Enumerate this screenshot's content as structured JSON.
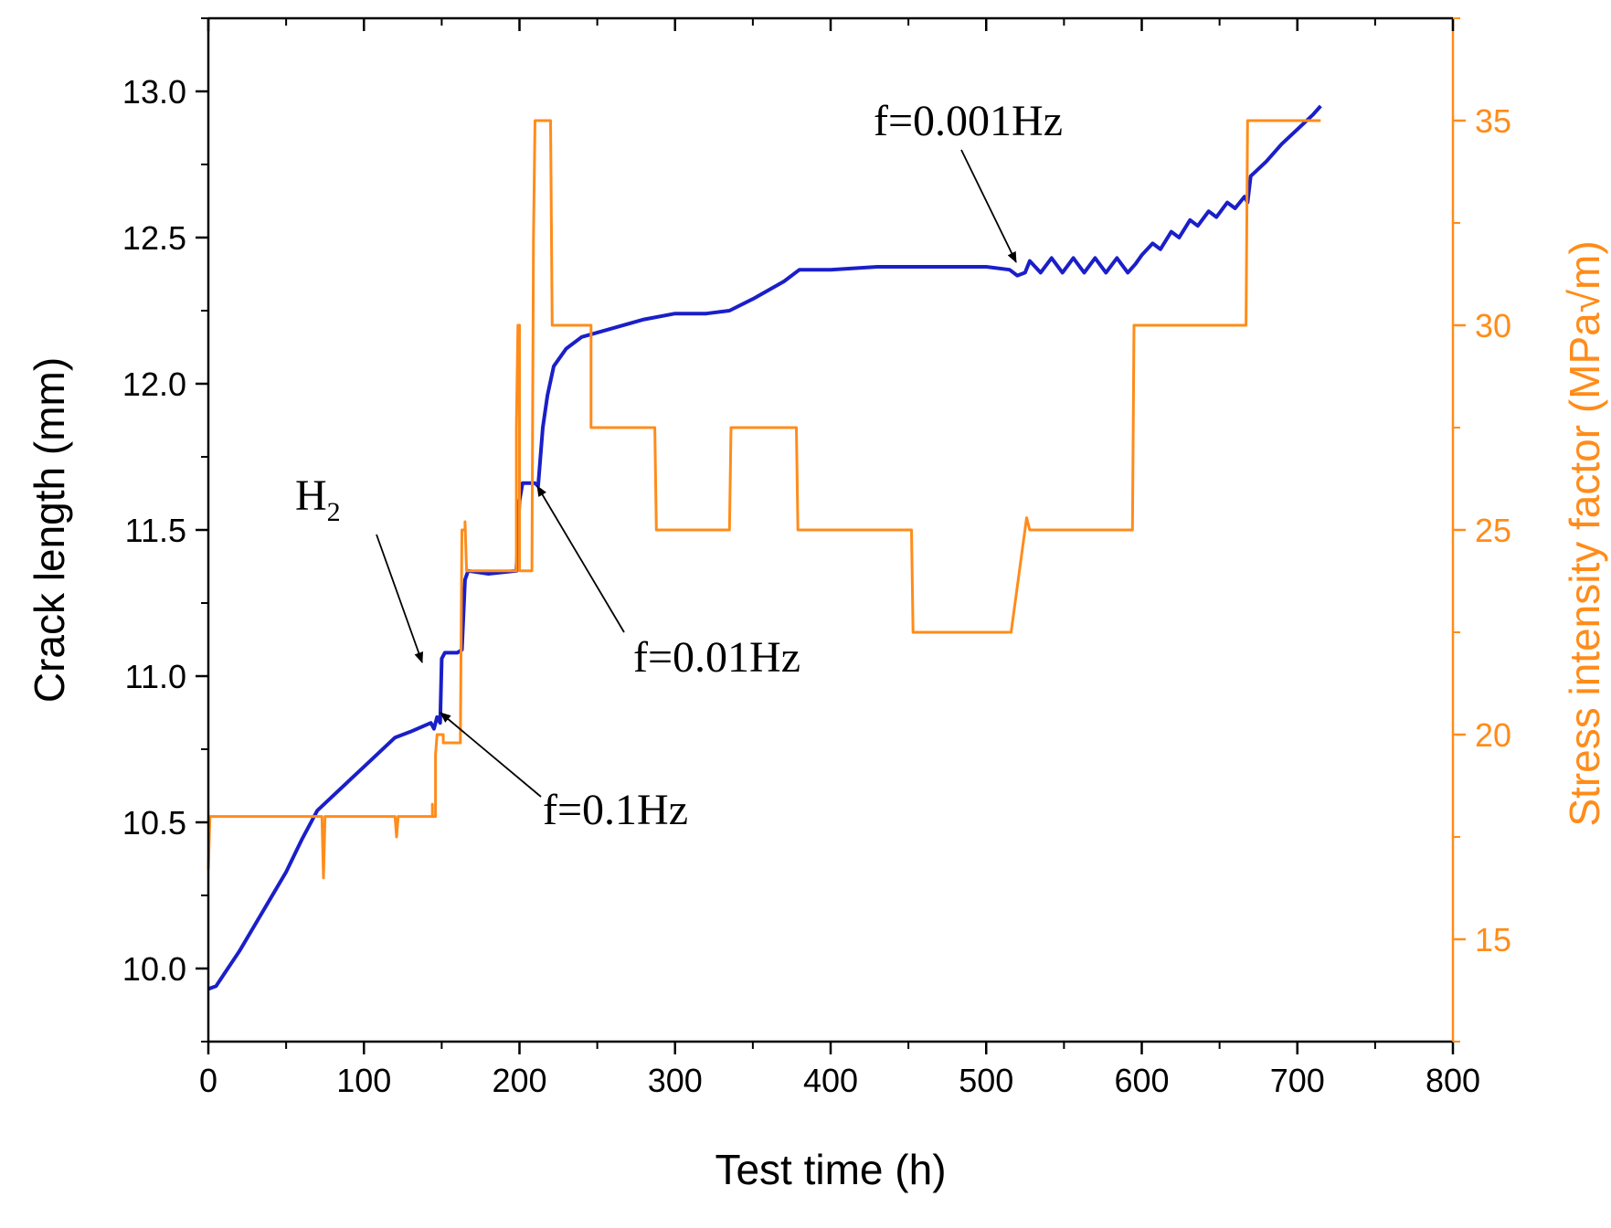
{
  "chart_data": {
    "type": "line",
    "title": "",
    "xlabel": "Test time (h)",
    "ylabel_left": "Crack length (mm)",
    "ylabel_right": "Stress intensity factor (MPa√m)",
    "xlim": [
      0,
      800
    ],
    "ylim_left": [
      9.75,
      13.25
    ],
    "ylim_right": [
      12.5,
      37.5
    ],
    "x_ticks": [
      "0",
      "100",
      "200",
      "300",
      "400",
      "500",
      "600",
      "700",
      "800"
    ],
    "y_left_ticks": [
      "10.0",
      "10.5",
      "11.0",
      "11.5",
      "12.0",
      "12.5",
      "13.0"
    ],
    "y_right_ticks": [
      "15",
      "20",
      "25",
      "30",
      "35"
    ],
    "colors": {
      "crack": "#1a1fc8",
      "stress": "#ff8c1a",
      "axis_right": "#ff8c1a"
    },
    "series": [
      {
        "name": "Crack length",
        "axis": "left",
        "color": "#1a1fc8",
        "points": [
          [
            0,
            9.93
          ],
          [
            5,
            9.94
          ],
          [
            10,
            9.98
          ],
          [
            20,
            10.06
          ],
          [
            30,
            10.15
          ],
          [
            40,
            10.24
          ],
          [
            50,
            10.33
          ],
          [
            60,
            10.44
          ],
          [
            70,
            10.54
          ],
          [
            80,
            10.59
          ],
          [
            90,
            10.64
          ],
          [
            100,
            10.69
          ],
          [
            110,
            10.74
          ],
          [
            120,
            10.79
          ],
          [
            130,
            10.81
          ],
          [
            143,
            10.84
          ],
          [
            145,
            10.82
          ],
          [
            147,
            10.86
          ],
          [
            149,
            10.84
          ],
          [
            150,
            11.06
          ],
          [
            152,
            11.08
          ],
          [
            160,
            11.08
          ],
          [
            163,
            11.09
          ],
          [
            165,
            11.33
          ],
          [
            167,
            11.36
          ],
          [
            180,
            11.35
          ],
          [
            198,
            11.36
          ],
          [
            200,
            11.6
          ],
          [
            202,
            11.66
          ],
          [
            210,
            11.66
          ],
          [
            212,
            11.65
          ],
          [
            215,
            11.85
          ],
          [
            218,
            11.96
          ],
          [
            222,
            12.06
          ],
          [
            230,
            12.12
          ],
          [
            240,
            12.16
          ],
          [
            260,
            12.19
          ],
          [
            280,
            12.22
          ],
          [
            300,
            12.24
          ],
          [
            320,
            12.24
          ],
          [
            335,
            12.25
          ],
          [
            350,
            12.29
          ],
          [
            370,
            12.35
          ],
          [
            380,
            12.39
          ],
          [
            400,
            12.39
          ],
          [
            430,
            12.4
          ],
          [
            460,
            12.4
          ],
          [
            500,
            12.4
          ],
          [
            515,
            12.39
          ],
          [
            520,
            12.37
          ],
          [
            525,
            12.38
          ],
          [
            528,
            12.42
          ],
          [
            535,
            12.38
          ],
          [
            542,
            12.43
          ],
          [
            549,
            12.38
          ],
          [
            556,
            12.43
          ],
          [
            563,
            12.38
          ],
          [
            570,
            12.43
          ],
          [
            577,
            12.38
          ],
          [
            584,
            12.43
          ],
          [
            591,
            12.38
          ],
          [
            596,
            12.41
          ],
          [
            600,
            12.44
          ],
          [
            607,
            12.48
          ],
          [
            612,
            12.46
          ],
          [
            619,
            12.52
          ],
          [
            624,
            12.5
          ],
          [
            631,
            12.56
          ],
          [
            636,
            12.54
          ],
          [
            643,
            12.59
          ],
          [
            648,
            12.57
          ],
          [
            655,
            12.62
          ],
          [
            660,
            12.6
          ],
          [
            666,
            12.64
          ],
          [
            668,
            12.62
          ],
          [
            670,
            12.71
          ],
          [
            680,
            12.76
          ],
          [
            690,
            12.82
          ],
          [
            700,
            12.87
          ],
          [
            710,
            12.92
          ],
          [
            715,
            12.95
          ]
        ]
      },
      {
        "name": "Stress intensity factor",
        "axis": "right",
        "color": "#ff8c1a",
        "points": [
          [
            0,
            16.7
          ],
          [
            1,
            18
          ],
          [
            73,
            18
          ],
          [
            74,
            16.5
          ],
          [
            75,
            18
          ],
          [
            120,
            18
          ],
          [
            121,
            17.5
          ],
          [
            122,
            18
          ],
          [
            144,
            18
          ],
          [
            144,
            18.3
          ],
          [
            144,
            18
          ],
          [
            146,
            18
          ],
          [
            146,
            19.5
          ],
          [
            147,
            20
          ],
          [
            151,
            20
          ],
          [
            151,
            19.8
          ],
          [
            162,
            19.8
          ],
          [
            163,
            25
          ],
          [
            165,
            25
          ],
          [
            165,
            25.2
          ],
          [
            166,
            24
          ],
          [
            198,
            24
          ],
          [
            198,
            27.5
          ],
          [
            199,
            30
          ],
          [
            200,
            30
          ],
          [
            200,
            24
          ],
          [
            208,
            24
          ],
          [
            209,
            32.1
          ],
          [
            210,
            35
          ],
          [
            220,
            35
          ],
          [
            221,
            30
          ],
          [
            246,
            30
          ],
          [
            246,
            27.5
          ],
          [
            287,
            27.5
          ],
          [
            288,
            25
          ],
          [
            335,
            25
          ],
          [
            336,
            27.5
          ],
          [
            378,
            27.5
          ],
          [
            379,
            25
          ],
          [
            452,
            25
          ],
          [
            453,
            22.5
          ],
          [
            516,
            22.5
          ],
          [
            526,
            25.3
          ],
          [
            528,
            25
          ],
          [
            594,
            25
          ],
          [
            595,
            30
          ],
          [
            667,
            30
          ],
          [
            668,
            35
          ],
          [
            715,
            35
          ]
        ]
      }
    ],
    "annotations": [
      {
        "id": "h2",
        "text": "H",
        "sub": "2"
      },
      {
        "id": "f01",
        "text": "f=0.1Hz"
      },
      {
        "id": "f001",
        "text": "f=0.01Hz"
      },
      {
        "id": "f0001",
        "text": "f=0.001Hz"
      }
    ]
  }
}
